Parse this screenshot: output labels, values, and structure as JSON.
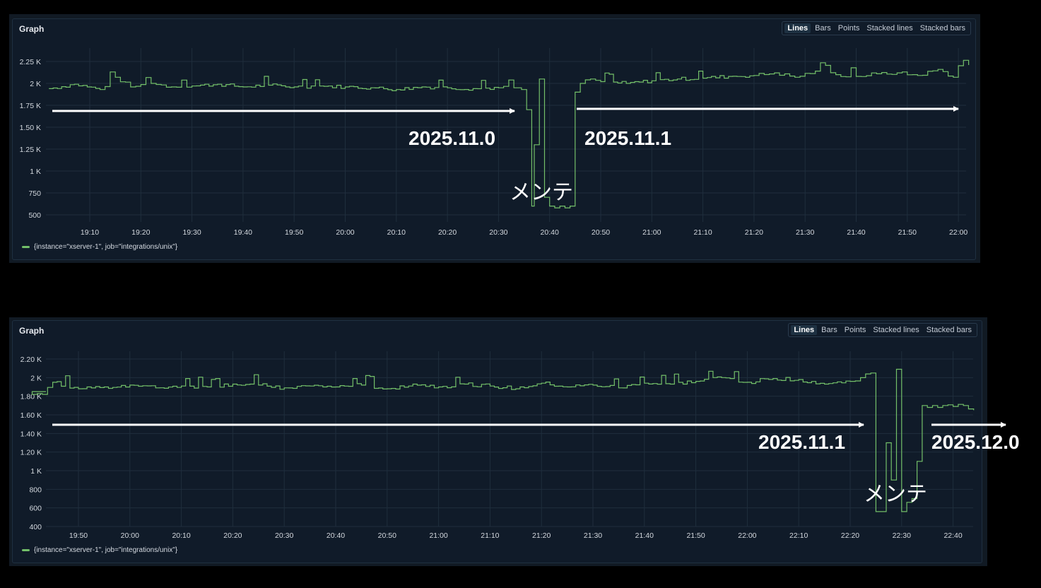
{
  "panels": [
    {
      "title": "Graph",
      "view_options": [
        "Lines",
        "Bars",
        "Points",
        "Stacked lines",
        "Stacked bars"
      ],
      "active_view": "Lines",
      "legend": "{instance=\"xserver-1\", job=\"integrations/unix\"}",
      "annotations": {
        "versions": [
          "2025.11.0",
          "2025.11.1"
        ],
        "maintenance": "メンテ"
      }
    },
    {
      "title": "Graph",
      "view_options": [
        "Lines",
        "Bars",
        "Points",
        "Stacked lines",
        "Stacked bars"
      ],
      "active_view": "Lines",
      "legend": "{instance=\"xserver-1\", job=\"integrations/unix\"}",
      "annotations": {
        "versions": [
          "2025.11.1",
          "2025.12.0"
        ],
        "maintenance": "メンテ"
      }
    }
  ],
  "colors": {
    "series": "#73bf69",
    "background": "#101b29",
    "annotation": "#ffffff"
  },
  "chart_data": [
    {
      "type": "line",
      "ytick_values": [
        500,
        750,
        1000,
        1250,
        1500,
        1750,
        2000,
        2250
      ],
      "ytick_labels": [
        "500",
        "750",
        "1 K",
        "1.25 K",
        "1.50 K",
        "1.75 K",
        "2 K",
        "2.25 K"
      ],
      "xtick_labels": [
        "19:10",
        "19:20",
        "19:30",
        "19:40",
        "19:50",
        "20:00",
        "20:10",
        "20:20",
        "20:30",
        "20:40",
        "20:50",
        "21:00",
        "21:10",
        "21:20",
        "21:30",
        "21:40",
        "21:50",
        "22:00"
      ],
      "xlim_minutes": [
        1142,
        1322
      ],
      "ylim": [
        425,
        2320
      ],
      "grid": true,
      "legend_position": "bottom-left",
      "series": [
        {
          "name": "{instance=\"xserver-1\", job=\"integrations/unix\"}",
          "x": [
            1142,
            1147,
            1152,
            1155,
            1158,
            1162,
            1166,
            1170,
            1175,
            1180,
            1185,
            1190,
            1195,
            1200,
            1205,
            1210,
            1215,
            1220,
            1225,
            1230,
            1233,
            1234.5,
            1235.5,
            1236.5,
            1237,
            1238,
            1239,
            1240,
            1241,
            1242,
            1243,
            1244,
            1245,
            1246,
            1248,
            1250,
            1255,
            1260,
            1265,
            1270,
            1275,
            1280,
            1284,
            1288,
            1292,
            1296,
            1300,
            1304,
            1308,
            1312,
            1316,
            1319,
            1322
          ],
          "y": [
            1940,
            1990,
            1930,
            2070,
            1960,
            2000,
            1960,
            1970,
            1990,
            1960,
            1980,
            1960,
            1970,
            1960,
            1950,
            1930,
            1960,
            1950,
            1940,
            1950,
            1950,
            1930,
            1700,
            600,
            1300,
            2050,
            700,
            600,
            580,
            600,
            580,
            600,
            1900,
            2000,
            2050,
            2020,
            2000,
            2030,
            2050,
            2060,
            2080,
            2090,
            2120,
            2070,
            2140,
            2100,
            2080,
            2110,
            2120,
            2090,
            2160,
            2070,
            2210
          ]
        }
      ]
    },
    {
      "type": "line",
      "ytick_values": [
        400,
        600,
        800,
        1000,
        1200,
        1400,
        1600,
        1800,
        2000,
        2200
      ],
      "ytick_labels": [
        "400",
        "600",
        "800",
        "1 K",
        "1.20 K",
        "1.40 K",
        "1.60 K",
        "1.80 K",
        "2 K",
        "2.20 K"
      ],
      "xtick_labels": [
        "19:50",
        "20:00",
        "20:10",
        "20:20",
        "20:30",
        "20:40",
        "20:50",
        "21:00",
        "21:10",
        "21:20",
        "21:30",
        "21:40",
        "21:50",
        "22:00",
        "22:10",
        "22:20",
        "22:30",
        "22:40"
      ],
      "xlim_minutes": [
        1180,
        1364
      ],
      "ylim": [
        400,
        2290
      ],
      "grid": true,
      "legend_position": "bottom-left",
      "series": [
        {
          "name": "{instance=\"xserver-1\", job=\"integrations/unix\"}",
          "x": [
            1180,
            1183,
            1185,
            1190,
            1195,
            1200,
            1205,
            1210,
            1215,
            1220,
            1225,
            1230,
            1235,
            1240,
            1245,
            1250,
            1255,
            1260,
            1265,
            1270,
            1275,
            1280,
            1285,
            1290,
            1295,
            1300,
            1305,
            1310,
            1315,
            1320,
            1325,
            1330,
            1335,
            1340,
            1344,
            1345,
            1347,
            1348,
            1349,
            1350,
            1351,
            1352,
            1353,
            1354,
            1355,
            1356,
            1357,
            1358,
            1360,
            1362,
            1364
          ],
          "y": [
            1850,
            1820,
            1950,
            1880,
            1900,
            1920,
            1890,
            1910,
            1900,
            1930,
            1920,
            1890,
            1910,
            1900,
            1920,
            1880,
            1930,
            1900,
            1930,
            1910,
            1880,
            1940,
            1900,
            1920,
            1890,
            1940,
            1930,
            1960,
            2000,
            1950,
            1990,
            1980,
            1930,
            1960,
            2050,
            560,
            1300,
            900,
            2090,
            560,
            660,
            700,
            1100,
            1700,
            1680,
            1700,
            1680,
            1700,
            1690,
            1700,
            1650
          ]
        }
      ]
    }
  ]
}
